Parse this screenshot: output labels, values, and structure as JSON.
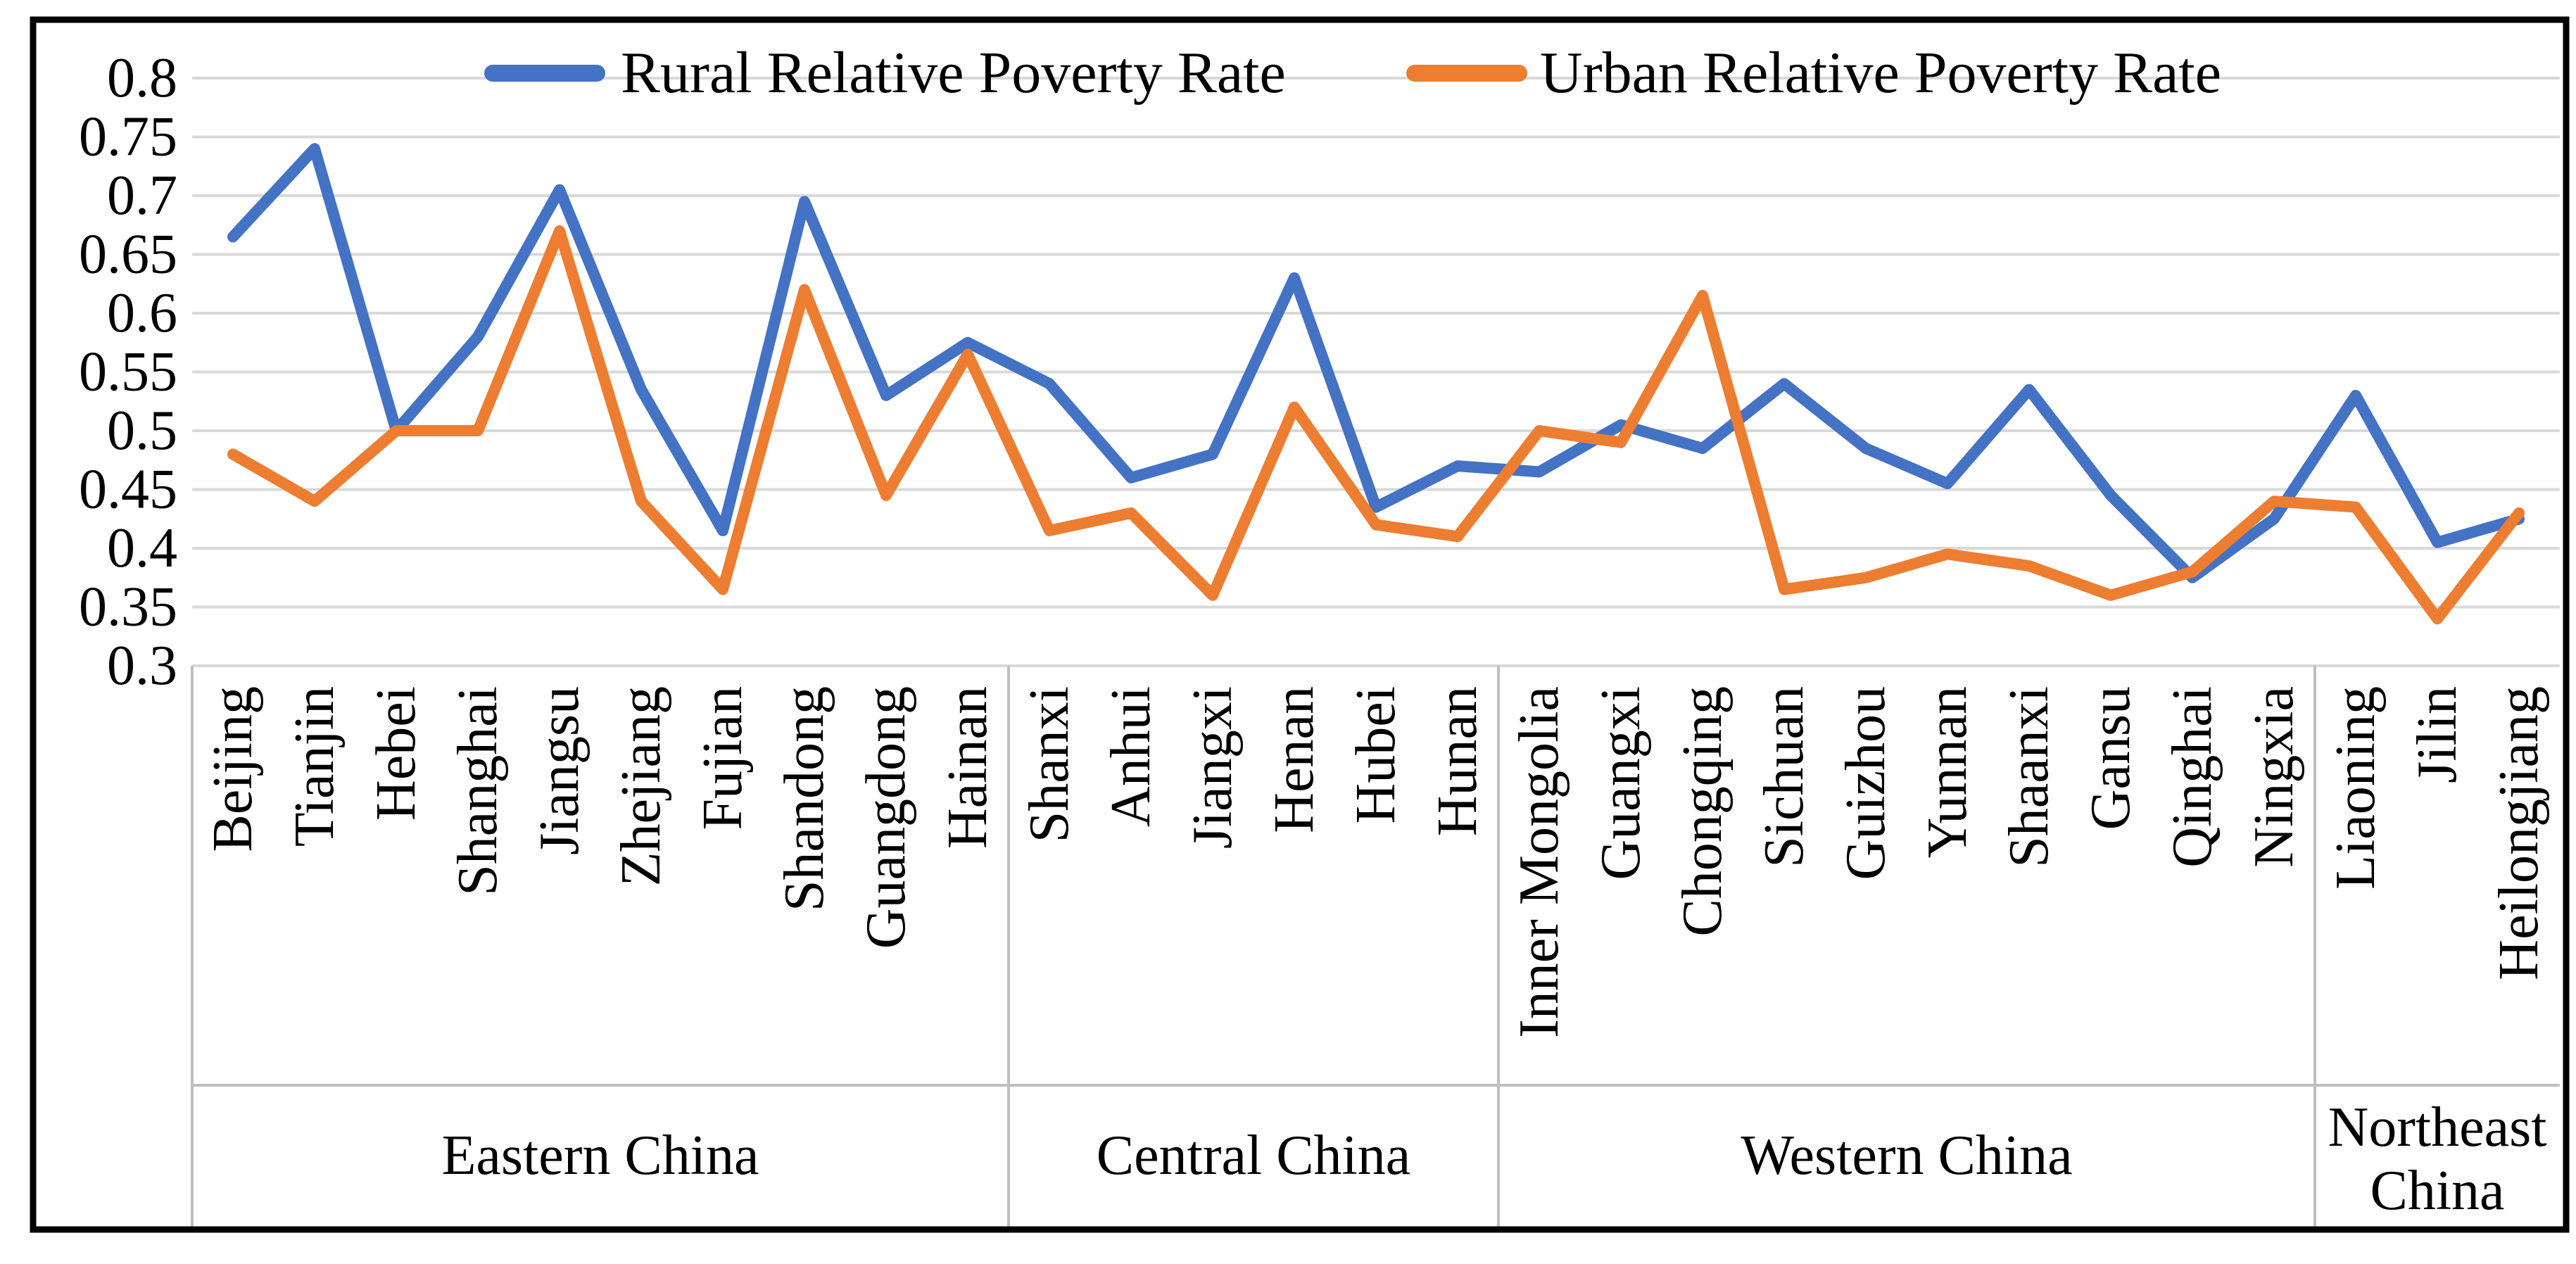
{
  "legend": {
    "rural": "Rural Relative Poverty Rate",
    "urban": "Urban Relative Poverty Rate"
  },
  "colors": {
    "rural": "#4472C4",
    "urban": "#ED7D31",
    "gridline": "#D9D9D9",
    "divider": "#BFBFBF",
    "border": "#000000",
    "text": "#000000"
  },
  "y_axis": {
    "min": 0.3,
    "max": 0.8,
    "step": 0.05,
    "tick_labels": [
      "0.8",
      "0.75",
      "0.7",
      "0.65",
      "0.6",
      "0.55",
      "0.5",
      "0.45",
      "0.4",
      "0.35",
      "0.3"
    ]
  },
  "regions": [
    {
      "label": "Eastern China",
      "lines": [
        "Eastern China"
      ],
      "count": 10
    },
    {
      "label": "Central China",
      "lines": [
        "Central China"
      ],
      "count": 6
    },
    {
      "label": "Western China",
      "lines": [
        "Western China"
      ],
      "count": 10
    },
    {
      "label": "Northeast China",
      "lines": [
        "Northeast",
        "China"
      ],
      "count": 3
    }
  ],
  "chart_data": {
    "type": "line",
    "title": "",
    "xlabel": "",
    "ylabel": "",
    "ylim": [
      0.3,
      0.8
    ],
    "grid": true,
    "legend_position": "top",
    "categories": [
      "Beijing",
      "Tianjin",
      "Hebei",
      "Shanghai",
      "Jiangsu",
      "Zhejiang",
      "Fujian",
      "Shandong",
      "Guangdong",
      "Hainan",
      "Shanxi",
      "Anhui",
      "Jiangxi",
      "Henan",
      "Hubei",
      "Hunan",
      "Inner Mongolia",
      "Guangxi",
      "Chongqing",
      "Sichuan",
      "Guizhou",
      "Yunnan",
      "Shaanxi",
      "Gansu",
      "Qinghai",
      "Ningxia",
      "Liaoning",
      "Jilin",
      "Heilongjiang"
    ],
    "series": [
      {
        "name": "Rural Relative Poverty Rate",
        "color": "#4472C4",
        "values": [
          0.665,
          0.74,
          0.5,
          0.58,
          0.705,
          0.535,
          0.415,
          0.695,
          0.53,
          0.575,
          0.54,
          0.46,
          0.48,
          0.63,
          0.435,
          0.47,
          0.465,
          0.505,
          0.485,
          0.54,
          0.485,
          0.455,
          0.535,
          0.445,
          0.375,
          0.425,
          0.53,
          0.405,
          0.425
        ]
      },
      {
        "name": "Urban Relative Poverty Rate",
        "color": "#ED7D31",
        "values": [
          0.48,
          0.44,
          0.5,
          0.5,
          0.67,
          0.44,
          0.365,
          0.62,
          0.445,
          0.565,
          0.415,
          0.43,
          0.36,
          0.52,
          0.42,
          0.41,
          0.5,
          0.49,
          0.615,
          0.365,
          0.375,
          0.395,
          0.385,
          0.36,
          0.38,
          0.44,
          0.435,
          0.34,
          0.43
        ]
      }
    ]
  }
}
